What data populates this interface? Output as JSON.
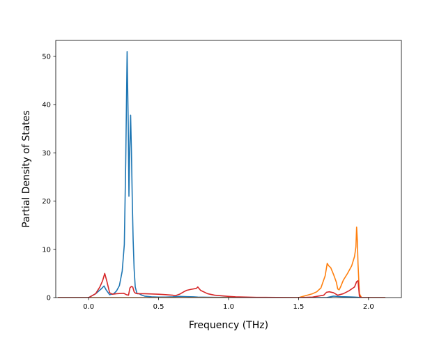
{
  "chart_data": {
    "type": "line",
    "xlabel": "Frequency (THz)",
    "ylabel": "Partial Density of States",
    "xlim": [
      -0.235,
      2.235
    ],
    "ylim": [
      0,
      53.3
    ],
    "xticks": [
      0.0,
      0.5,
      1.0,
      1.5,
      2.0
    ],
    "xtick_labels": [
      "0.0",
      "0.5",
      "1.0",
      "1.5",
      "2.0"
    ],
    "yticks": [
      0,
      10,
      20,
      30,
      40,
      50
    ],
    "ytick_labels": [
      "0",
      "10",
      "20",
      "30",
      "40",
      "50"
    ],
    "grid": false,
    "series": [
      {
        "color": "#1f77b4",
        "x": [
          -0.22,
          0.0,
          0.05,
          0.09,
          0.11,
          0.125,
          0.15,
          0.18,
          0.2,
          0.22,
          0.24,
          0.255,
          0.265,
          0.275,
          0.283,
          0.288,
          0.293,
          0.3,
          0.306,
          0.312,
          0.318,
          0.325,
          0.333,
          0.345,
          0.36,
          0.38,
          0.4,
          0.45,
          0.5,
          0.55,
          0.6,
          0.65,
          0.7,
          0.75,
          0.78,
          0.82,
          0.9,
          1.0,
          1.1,
          1.2,
          1.5,
          1.6,
          1.7,
          1.75,
          1.8,
          1.85,
          1.9,
          1.93,
          1.945,
          2.0,
          2.12
        ],
        "values": [
          0,
          0,
          0.8,
          1.8,
          2.4,
          1.6,
          0.6,
          0.8,
          1.4,
          2.5,
          5.5,
          11,
          28,
          51,
          36,
          21,
          30,
          37.8,
          30,
          20,
          12,
          6,
          2.2,
          0.9,
          0.8,
          0.5,
          0.3,
          0.15,
          0.1,
          0.1,
          0.15,
          0.25,
          0.2,
          0.15,
          0.1,
          0.08,
          0.05,
          0.04,
          0.03,
          0,
          0,
          0,
          0,
          0.3,
          0.2,
          0.15,
          0.1,
          0.05,
          0,
          0,
          0
        ]
      },
      {
        "color": "#ff7f0e",
        "x": [
          -0.22,
          1.5,
          1.55,
          1.6,
          1.63,
          1.66,
          1.69,
          1.705,
          1.715,
          1.73,
          1.75,
          1.77,
          1.78,
          1.79,
          1.8,
          1.82,
          1.85,
          1.88,
          1.9,
          1.91,
          1.915,
          1.92,
          1.925,
          1.935,
          1.95,
          2.12
        ],
        "values": [
          0,
          0,
          0.4,
          0.8,
          1.2,
          2.0,
          4.5,
          7.1,
          6.6,
          6.2,
          4.8,
          3.2,
          1.8,
          1.6,
          2.2,
          3.6,
          5.0,
          6.6,
          8.5,
          10.5,
          14.6,
          12.0,
          7.0,
          0.8,
          0,
          0
        ]
      },
      {
        "color": "#d62728",
        "x": [
          -0.22,
          0.0,
          0.05,
          0.08,
          0.1,
          0.115,
          0.13,
          0.15,
          0.17,
          0.2,
          0.25,
          0.27,
          0.285,
          0.295,
          0.305,
          0.315,
          0.325,
          0.335,
          0.35,
          0.4,
          0.5,
          0.55,
          0.6,
          0.62,
          0.65,
          0.68,
          0.7,
          0.73,
          0.77,
          0.78,
          0.8,
          0.85,
          0.9,
          1.0,
          1.05,
          1.2,
          1.5,
          1.6,
          1.68,
          1.7,
          1.72,
          1.75,
          1.78,
          1.82,
          1.86,
          1.9,
          1.915,
          1.925,
          1.935,
          1.95,
          2.12
        ],
        "values": [
          0,
          0,
          0.8,
          2.2,
          3.5,
          5.0,
          3.4,
          1.0,
          0.7,
          0.8,
          0.9,
          0.6,
          0.5,
          2.0,
          2.3,
          2.2,
          1.2,
          0.9,
          0.8,
          0.8,
          0.7,
          0.6,
          0.5,
          0.4,
          0.7,
          1.2,
          1.5,
          1.7,
          1.9,
          2.2,
          1.5,
          0.8,
          0.5,
          0.25,
          0.15,
          0.05,
          0,
          0.1,
          0.5,
          1.1,
          1.2,
          1.0,
          0.5,
          0.8,
          1.4,
          2.2,
          3.3,
          3.5,
          0.3,
          0,
          0
        ]
      }
    ]
  }
}
